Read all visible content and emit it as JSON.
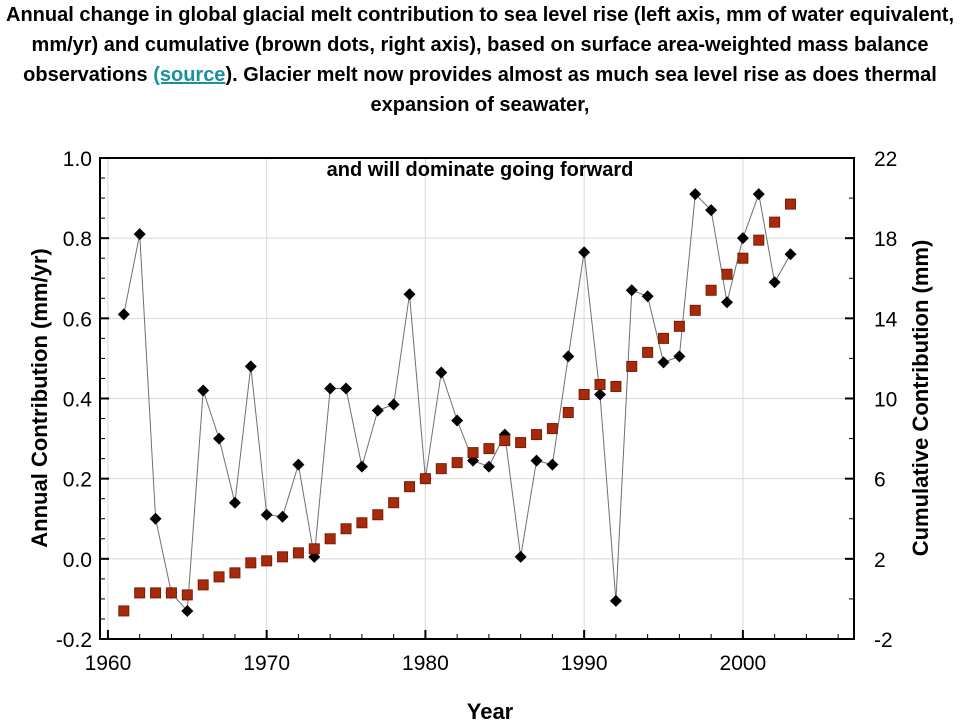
{
  "caption": {
    "part1": "Annual change in global glacial melt contribution  to sea level rise (left axis, mm of water equivalent, mm/yr) and cumulative (brown dots, right axis), based on surface area-weighted mass balance observations ",
    "link_text": "(source",
    "part2": "). Glacier melt now provides almost as much sea level rise as does thermal expansion of seawater,",
    "continuation": "and will dominate going forward"
  },
  "colors": {
    "annual_marker": "#000000",
    "annual_line": "#707070",
    "cumulative_marker": "#a8290c",
    "cumulative_marker_edge": "#7a1c06",
    "axes": "#000000",
    "grid": "#d8d8d8",
    "link": "#1a8fa0"
  },
  "chart_data": {
    "type": "line",
    "xlabel": "Year",
    "ylabel": "Annual Contribution (mm/yr)",
    "y2label": "Cumulative Contribution (mm)",
    "xlim": [
      1959.5,
      2007
    ],
    "ylim": [
      -0.2,
      1.0
    ],
    "y2lim": [
      -2,
      22
    ],
    "grid": true,
    "x_ticks": [
      1960,
      1970,
      1980,
      1990,
      2000
    ],
    "y_ticks": [
      -0.2,
      0.0,
      0.2,
      0.4,
      0.6,
      0.8,
      1.0
    ],
    "y_tick_labels": [
      "-0.2",
      "0.0",
      "0.2",
      "0.4",
      "0.6",
      "0.8",
      "1.0"
    ],
    "y2_ticks": [
      -2,
      2,
      6,
      10,
      14,
      18,
      22
    ],
    "x": [
      1961,
      1962,
      1963,
      1964,
      1965,
      1966,
      1967,
      1968,
      1969,
      1970,
      1971,
      1972,
      1973,
      1974,
      1975,
      1976,
      1977,
      1978,
      1979,
      1980,
      1981,
      1982,
      1983,
      1984,
      1985,
      1986,
      1987,
      1988,
      1989,
      1990,
      1991,
      1992,
      1993,
      1994,
      1995,
      1996,
      1997,
      1998,
      1999,
      2000,
      2001,
      2002,
      2003
    ],
    "series": [
      {
        "axis": "left",
        "marker": "diamond",
        "values": [
          0.61,
          0.81,
          0.1,
          -0.085,
          -0.13,
          0.42,
          0.3,
          0.14,
          0.48,
          0.11,
          0.105,
          0.235,
          0.005,
          0.425,
          0.425,
          0.23,
          0.37,
          0.385,
          0.66,
          0.2,
          0.465,
          0.345,
          0.245,
          0.23,
          0.31,
          0.005,
          0.245,
          0.235,
          0.505,
          0.765,
          0.41,
          -0.105,
          0.67,
          0.655,
          0.49,
          0.505,
          0.91,
          0.87,
          0.64,
          0.8,
          0.91,
          0.69,
          0.76
        ]
      },
      {
        "axis": "right",
        "marker": "square",
        "values": [
          -0.6,
          0.3,
          0.3,
          0.3,
          0.2,
          0.7,
          1.1,
          1.3,
          1.8,
          1.9,
          2.1,
          2.3,
          2.5,
          3.0,
          3.5,
          3.8,
          4.2,
          4.8,
          5.6,
          6.0,
          6.5,
          6.8,
          7.3,
          7.5,
          7.9,
          7.8,
          8.2,
          8.5,
          9.3,
          10.2,
          10.7,
          10.6,
          11.6,
          12.3,
          13.0,
          13.6,
          14.4,
          15.4,
          16.2,
          17.0,
          17.9,
          18.8,
          19.7
        ]
      }
    ]
  }
}
